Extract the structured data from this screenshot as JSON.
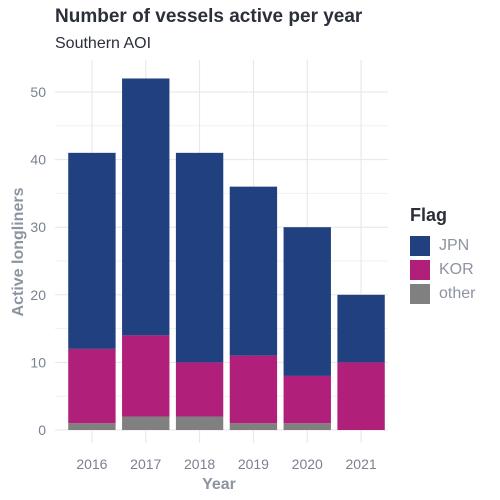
{
  "chart_data": {
    "type": "bar",
    "stacked": true,
    "title": "Number of vessels active per year",
    "subtitle": "Southern AOI",
    "xlabel": "Year",
    "ylabel": "Active longliners",
    "categories": [
      "2016",
      "2017",
      "2018",
      "2019",
      "2020",
      "2021"
    ],
    "series": [
      {
        "name": "other",
        "color": "#808080",
        "values": [
          1,
          2,
          2,
          1,
          1,
          0
        ]
      },
      {
        "name": "KOR",
        "color": "#b01f7a",
        "values": [
          11,
          12,
          8,
          10,
          7,
          10
        ]
      },
      {
        "name": "JPN",
        "color": "#21407f",
        "values": [
          29,
          38,
          31,
          25,
          22,
          10
        ]
      }
    ],
    "ylim": [
      0,
      54
    ],
    "yticks": [
      0,
      10,
      20,
      30,
      40,
      50
    ],
    "grid": true,
    "legend": {
      "title": "Flag",
      "position": "right",
      "order": [
        "JPN",
        "KOR",
        "other"
      ]
    }
  }
}
